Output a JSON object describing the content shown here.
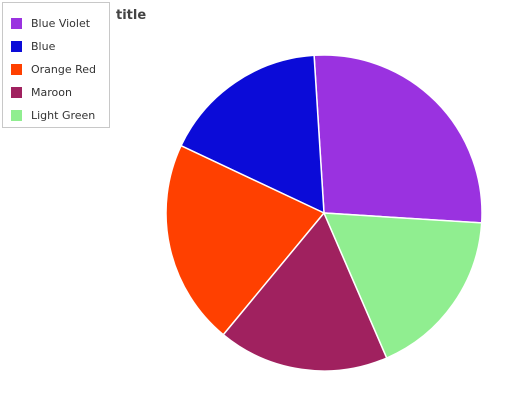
{
  "chart_data": {
    "type": "pie",
    "title": "title",
    "categories": [
      "Blue Violet",
      "Blue",
      "Orange Red",
      "Maroon",
      "Light Green"
    ],
    "values": [
      27,
      17,
      21,
      17.5,
      17.5
    ],
    "colors": [
      "#9a32e0",
      "#0b0bd8",
      "#ff4000",
      "#a0215f",
      "#90ee90"
    ],
    "legend_position": "top-left"
  }
}
